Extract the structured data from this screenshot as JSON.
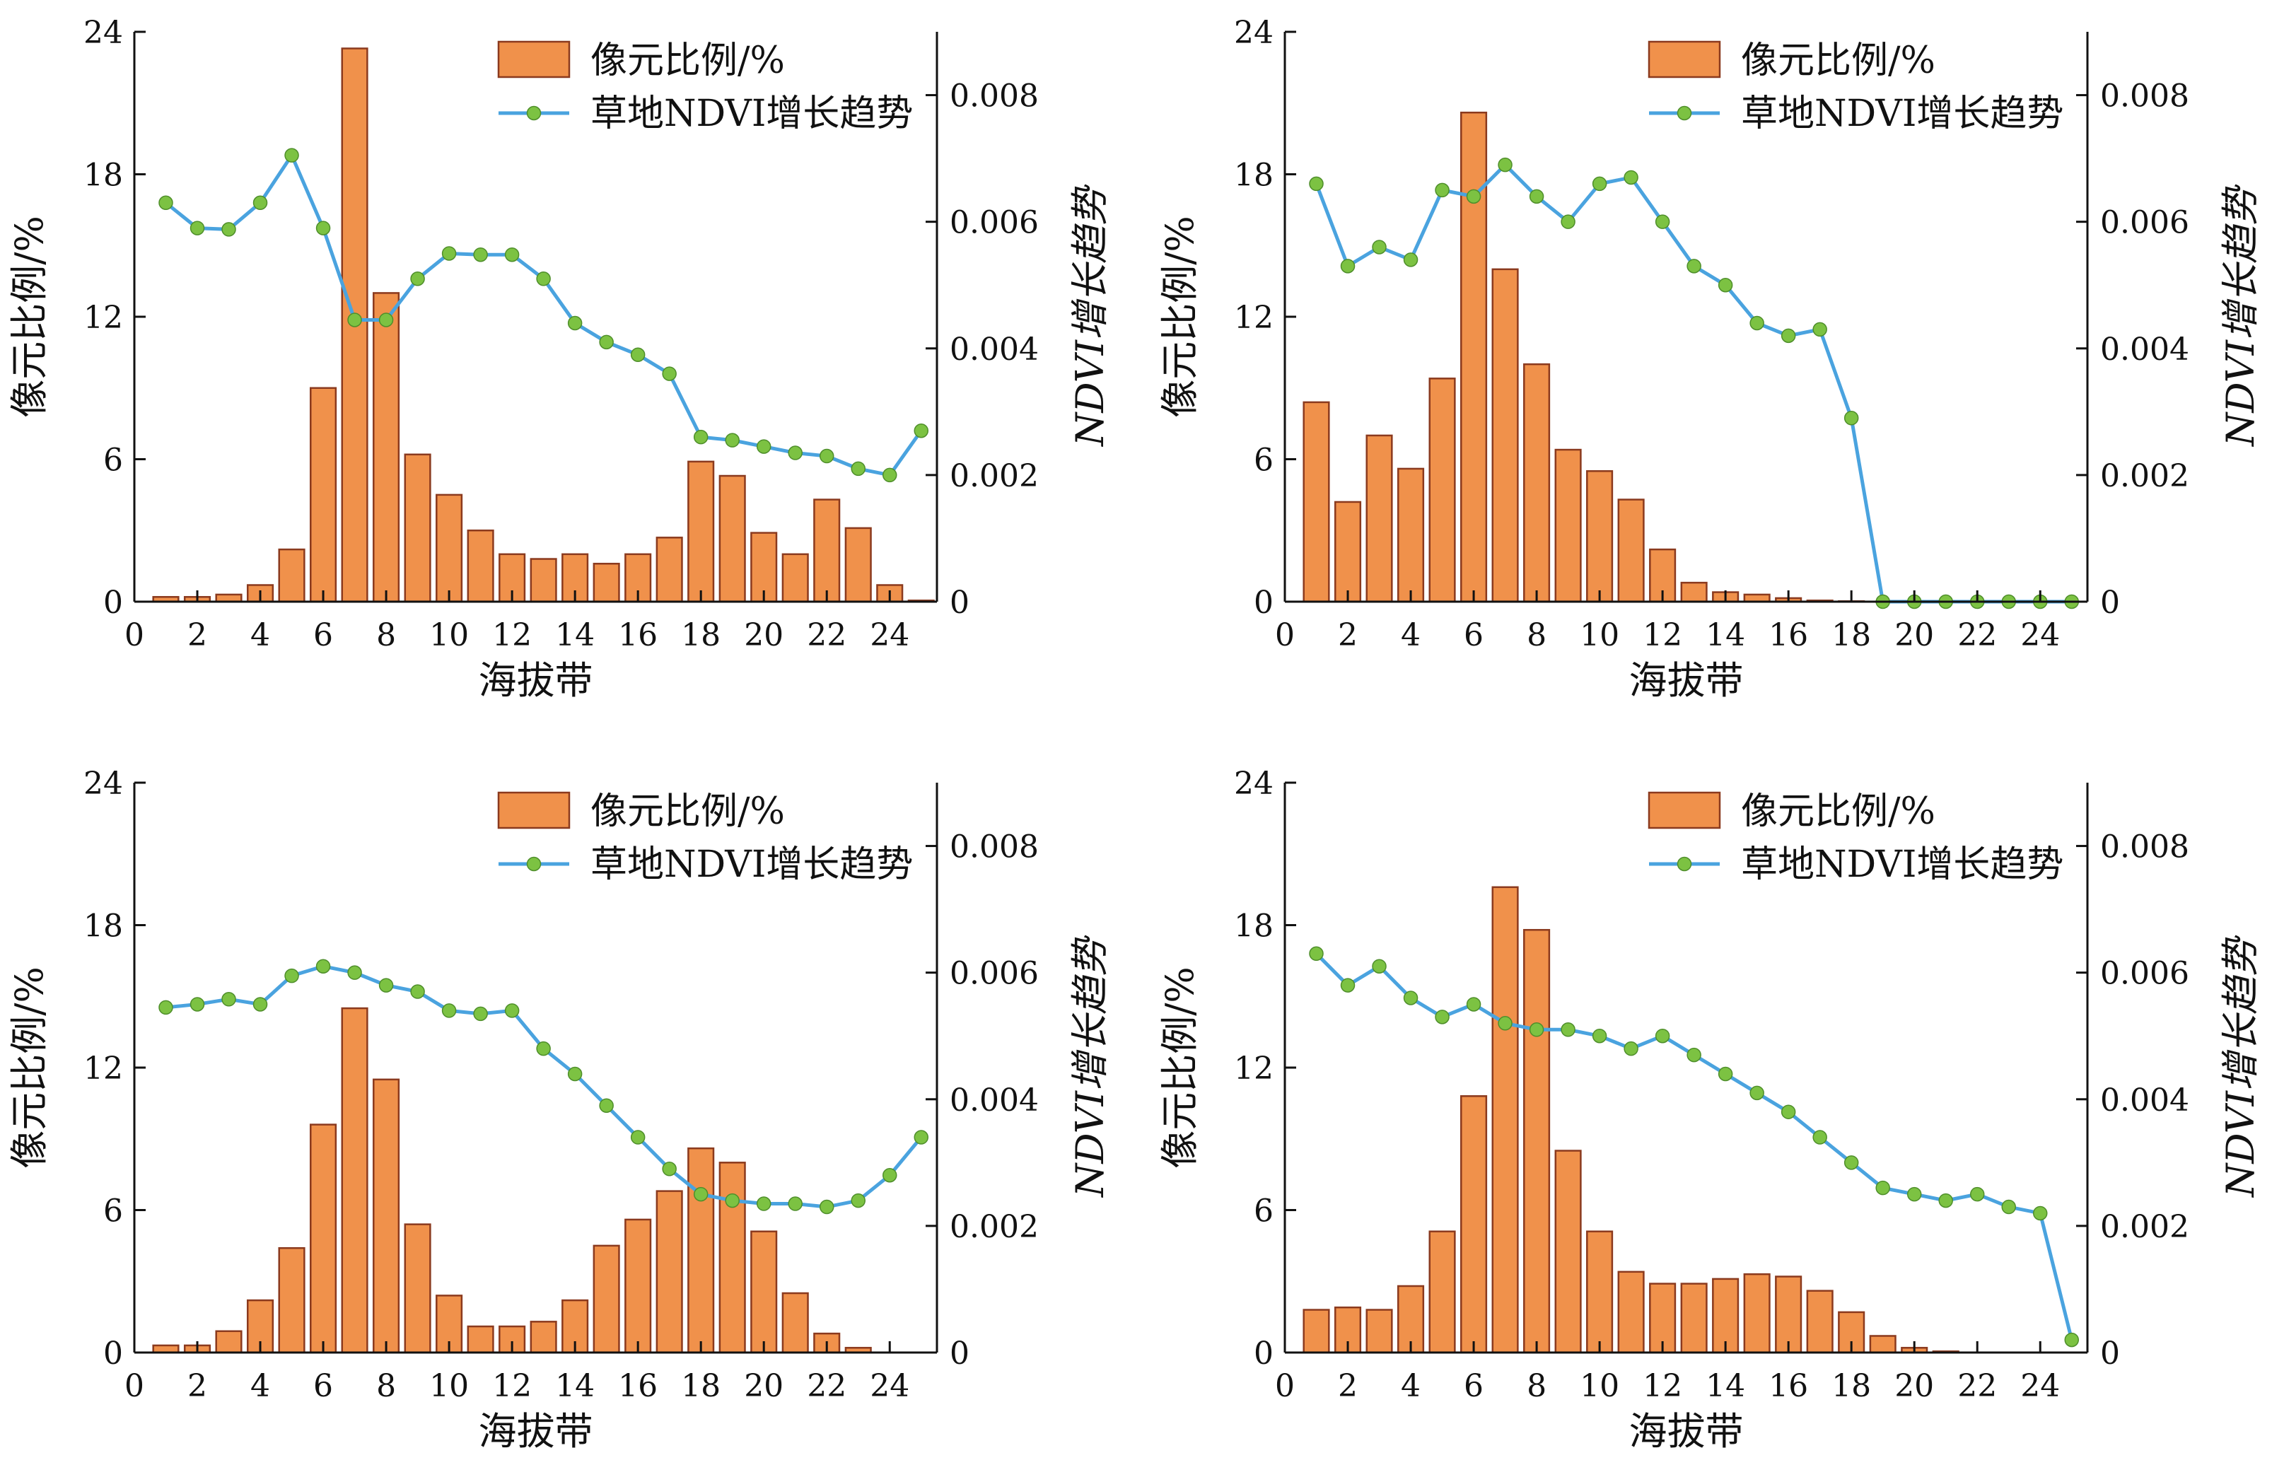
{
  "legend": {
    "bar_label": "像元比例/%",
    "line_label": "草地NDVI增长趋势"
  },
  "colors": {
    "bar_fill": "#F0914B",
    "bar_stroke": "#8B3A1E",
    "line": "#4AA3DF",
    "marker": "#7CC242",
    "marker_stroke": "#4E8E2A",
    "axis": "#111111"
  },
  "chart_data": [
    {
      "type": "bar",
      "panel": "top-left",
      "legend_position": "top-right",
      "xlabel": "海拔带",
      "ylabel_left": "像元比例/%",
      "ylabel_right": "NDVI增长趋势",
      "xlim": [
        0,
        25.5
      ],
      "xticks": [
        0,
        2,
        4,
        6,
        8,
        10,
        12,
        14,
        16,
        18,
        20,
        22,
        24
      ],
      "ylim_left": [
        0,
        24
      ],
      "yticks_left": [
        0,
        6,
        12,
        18,
        24
      ],
      "ylim_right": [
        0,
        0.009
      ],
      "yticks_right": [
        "0",
        "0.002",
        "0.004",
        "0.006",
        "0.008"
      ],
      "x": [
        1,
        2,
        3,
        4,
        5,
        6,
        7,
        8,
        9,
        10,
        11,
        12,
        13,
        14,
        15,
        16,
        17,
        18,
        19,
        20,
        21,
        22,
        23,
        24,
        25
      ],
      "series": [
        {
          "name": "像元比例/%",
          "type": "bar",
          "axis": "left",
          "values": [
            0.2,
            0.2,
            0.3,
            0.7,
            2.2,
            9.0,
            23.3,
            13.0,
            6.2,
            4.5,
            3.0,
            2.0,
            1.8,
            2.0,
            1.6,
            2.0,
            2.7,
            5.9,
            5.3,
            2.9,
            2.0,
            4.3,
            3.1,
            0.7,
            0.05
          ]
        },
        {
          "name": "草地NDVI增长趋势",
          "type": "line",
          "axis": "right",
          "values": [
            0.0063,
            0.0059,
            0.00588,
            0.0063,
            0.00705,
            0.0059,
            0.00445,
            0.00445,
            0.0051,
            0.0055,
            0.00548,
            0.00548,
            0.0051,
            0.0044,
            0.0041,
            0.0039,
            0.0036,
            0.0026,
            0.00255,
            0.00245,
            0.00235,
            0.0023,
            0.0021,
            0.002,
            0.0027
          ]
        }
      ]
    },
    {
      "type": "bar",
      "panel": "top-right",
      "legend_position": "top-right",
      "xlabel": "海拔带",
      "ylabel_left": "像元比例/%",
      "ylabel_right": "NDVI增长趋势",
      "xlim": [
        0,
        25.5
      ],
      "xticks": [
        0,
        2,
        4,
        6,
        8,
        10,
        12,
        14,
        16,
        18,
        20,
        22,
        24
      ],
      "ylim_left": [
        0,
        24
      ],
      "yticks_left": [
        0,
        6,
        12,
        18,
        24
      ],
      "ylim_right": [
        0,
        0.009
      ],
      "yticks_right": [
        "0",
        "0.002",
        "0.004",
        "0.006",
        "0.008"
      ],
      "x": [
        1,
        2,
        3,
        4,
        5,
        6,
        7,
        8,
        9,
        10,
        11,
        12,
        13,
        14,
        15,
        16,
        17,
        18,
        19,
        20,
        21,
        22,
        23,
        24,
        25
      ],
      "series": [
        {
          "name": "像元比例/%",
          "type": "bar",
          "axis": "left",
          "values": [
            8.4,
            4.2,
            7.0,
            5.6,
            9.4,
            20.6,
            14.0,
            10.0,
            6.4,
            5.5,
            4.3,
            2.2,
            0.8,
            0.4,
            0.3,
            0.15,
            0.05,
            0.02,
            0,
            0,
            0,
            0,
            0,
            0,
            0
          ]
        },
        {
          "name": "草地NDVI增长趋势",
          "type": "line",
          "axis": "right",
          "values": [
            0.0066,
            0.0053,
            0.0056,
            0.0054,
            0.0065,
            0.0064,
            0.0069,
            0.0064,
            0.006,
            0.0066,
            0.0067,
            0.006,
            0.0053,
            0.005,
            0.0044,
            0.0042,
            0.0043,
            0.0029,
            0,
            0,
            0,
            0,
            0,
            0,
            0
          ]
        }
      ]
    },
    {
      "type": "bar",
      "panel": "bottom-left",
      "legend_position": "top-right",
      "xlabel": "海拔带",
      "ylabel_left": "像元比例/%",
      "ylabel_right": "NDVI增长趋势",
      "xlim": [
        0,
        25.5
      ],
      "xticks": [
        0,
        2,
        4,
        6,
        8,
        10,
        12,
        14,
        16,
        18,
        20,
        22,
        24
      ],
      "ylim_left": [
        0,
        24
      ],
      "yticks_left": [
        0,
        6,
        12,
        18,
        24
      ],
      "ylim_right": [
        0,
        0.009
      ],
      "yticks_right": [
        "0",
        "0.002",
        "0.004",
        "0.006",
        "0.008"
      ],
      "x": [
        1,
        2,
        3,
        4,
        5,
        6,
        7,
        8,
        9,
        10,
        11,
        12,
        13,
        14,
        15,
        16,
        17,
        18,
        19,
        20,
        21,
        22,
        23,
        24,
        25
      ],
      "series": [
        {
          "name": "像元比例/%",
          "type": "bar",
          "axis": "left",
          "values": [
            0.3,
            0.3,
            0.9,
            2.2,
            4.4,
            9.6,
            14.5,
            11.5,
            5.4,
            2.4,
            1.1,
            1.1,
            1.3,
            2.2,
            4.5,
            5.6,
            6.8,
            8.6,
            8.0,
            5.1,
            2.5,
            0.8,
            0.2,
            0,
            0
          ]
        },
        {
          "name": "草地NDVI增长趋势",
          "type": "line",
          "axis": "right",
          "values": [
            0.00545,
            0.0055,
            0.00558,
            0.0055,
            0.00595,
            0.0061,
            0.006,
            0.0058,
            0.0057,
            0.0054,
            0.00535,
            0.0054,
            0.0048,
            0.0044,
            0.0039,
            0.0034,
            0.0029,
            0.0025,
            0.0024,
            0.00235,
            0.00235,
            0.0023,
            0.0024,
            0.0028,
            0.0034
          ]
        }
      ]
    },
    {
      "type": "bar",
      "panel": "bottom-right",
      "legend_position": "top-right",
      "xlabel": "海拔带",
      "ylabel_left": "像元比例/%",
      "ylabel_right": "NDVI增长趋势",
      "xlim": [
        0,
        25.5
      ],
      "xticks": [
        0,
        2,
        4,
        6,
        8,
        10,
        12,
        14,
        16,
        18,
        20,
        22,
        24
      ],
      "ylim_left": [
        0,
        24
      ],
      "yticks_left": [
        0,
        6,
        12,
        18,
        24
      ],
      "ylim_right": [
        0,
        0.009
      ],
      "yticks_right": [
        "0",
        "0.002",
        "0.004",
        "0.006",
        "0.008"
      ],
      "x": [
        1,
        2,
        3,
        4,
        5,
        6,
        7,
        8,
        9,
        10,
        11,
        12,
        13,
        14,
        15,
        16,
        17,
        18,
        19,
        20,
        21,
        22,
        23,
        24,
        25
      ],
      "series": [
        {
          "name": "像元比例/%",
          "type": "bar",
          "axis": "left",
          "values": [
            1.8,
            1.9,
            1.8,
            2.8,
            5.1,
            10.8,
            19.6,
            17.8,
            8.5,
            5.1,
            3.4,
            2.9,
            2.9,
            3.1,
            3.3,
            3.2,
            2.6,
            1.7,
            0.7,
            0.2,
            0.05,
            0,
            0,
            0,
            0
          ]
        },
        {
          "name": "草地NDVI增长趋势",
          "type": "line",
          "axis": "right",
          "values": [
            0.0063,
            0.0058,
            0.0061,
            0.0056,
            0.0053,
            0.0055,
            0.0052,
            0.0051,
            0.0051,
            0.005,
            0.0048,
            0.005,
            0.0047,
            0.0044,
            0.0041,
            0.0038,
            0.0034,
            0.003,
            0.0026,
            0.0025,
            0.0024,
            0.0025,
            0.0023,
            0.0022,
            0.0002
          ]
        }
      ]
    }
  ]
}
